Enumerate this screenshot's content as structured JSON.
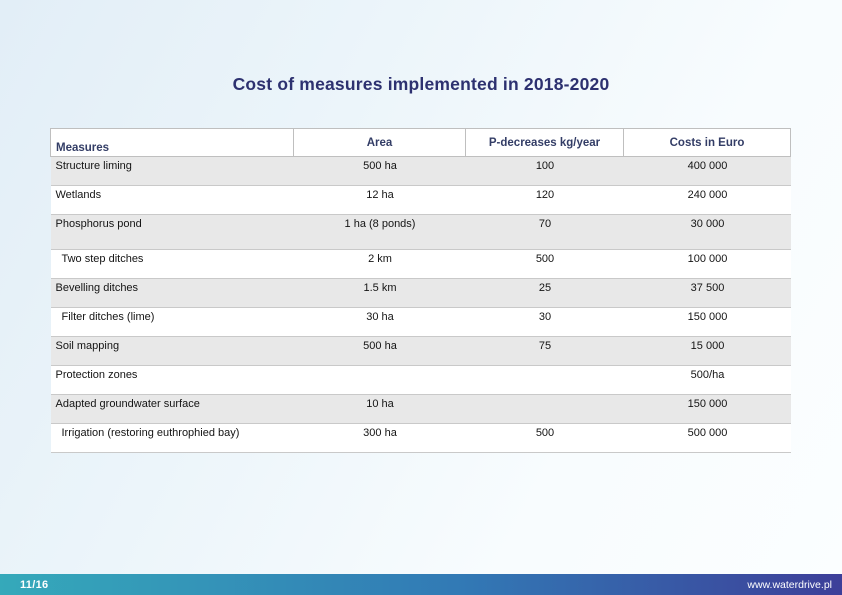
{
  "slide": {
    "title": "Cost of measures implemented in 2018-2020"
  },
  "table": {
    "columns": [
      "Measures",
      "Area",
      "P-decreases kg/year",
      "Costs in Euro"
    ],
    "rows": [
      {
        "measure": "Structure liming",
        "area": "500 ha",
        "p_decrease": "100",
        "cost": "400 000"
      },
      {
        "measure": "Wetlands",
        "area": "12 ha",
        "p_decrease": "120",
        "cost": "240 000"
      },
      {
        "measure": "Phosphorus pond",
        "area": "1 ha (8 ponds)",
        "p_decrease": "70",
        "cost": "30 000",
        "tall": true
      },
      {
        "measure": "Two step ditches",
        "area": "2 km",
        "p_decrease": "500",
        "cost": "100 000",
        "indent": true
      },
      {
        "measure": "Bevelling ditches",
        "area": "1.5 km",
        "p_decrease": "25",
        "cost": "37 500"
      },
      {
        "measure": "Filter ditches (lime)",
        "area": "30 ha",
        "p_decrease": "30",
        "cost": "150 000",
        "indent": true
      },
      {
        "measure": "Soil mapping",
        "area": "500 ha",
        "p_decrease": "75",
        "cost": "15 000"
      },
      {
        "measure": "Protection zones",
        "area": "",
        "p_decrease": "",
        "cost": "500/ha"
      },
      {
        "measure": "Adapted groundwater surface",
        "area": "10 ha",
        "p_decrease": "",
        "cost": "150 000"
      },
      {
        "measure": "Irrigation (restoring euthrophied bay)",
        "area": "300 ha",
        "p_decrease": "500",
        "cost": "500 000",
        "indent": true
      }
    ]
  },
  "footer": {
    "page_indicator": "11/16",
    "website": "www.waterdrive.pl"
  },
  "colors": {
    "title": "#2d3170",
    "header_text": "#333d66",
    "row_shade": "#e8e8e8",
    "footer_gradient_left": "#35a9ba",
    "footer_gradient_mid": "#3279b5",
    "footer_gradient_right": "#3d3f99"
  }
}
